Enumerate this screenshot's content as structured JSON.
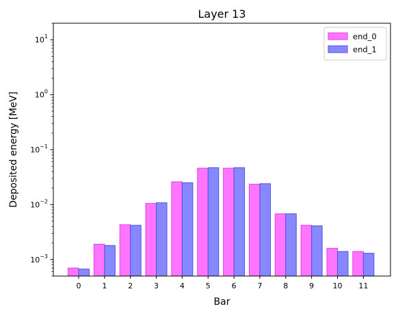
{
  "chart_data": {
    "type": "bar",
    "title": "Layer 13",
    "xlabel": "Bar",
    "ylabel": "Deposited energy [MeV]",
    "yscale": "log",
    "ylim": [
      0.0005,
      20
    ],
    "y_ticks": [
      {
        "value": 0.001,
        "base": "10",
        "exp": "−3"
      },
      {
        "value": 0.01,
        "base": "10",
        "exp": "−2"
      },
      {
        "value": 0.1,
        "base": "10",
        "exp": "−1"
      },
      {
        "value": 1,
        "base": "10",
        "exp": "0"
      },
      {
        "value": 10,
        "base": "10",
        "exp": "1"
      }
    ],
    "categories": [
      "0",
      "1",
      "2",
      "3",
      "4",
      "5",
      "6",
      "7",
      "8",
      "9",
      "10",
      "11"
    ],
    "legend_position": "top-right",
    "grid": false,
    "series": [
      {
        "name": "end_0",
        "fill": "#ff66ff",
        "stroke": "#e040e0",
        "values": [
          0.0007,
          0.0019,
          0.0043,
          0.0105,
          0.026,
          0.046,
          0.046,
          0.0235,
          0.0068,
          0.0042,
          0.0016,
          0.0014
        ]
      },
      {
        "name": "end_1",
        "fill": "#7a7aff",
        "stroke": "#5050e0",
        "values": [
          0.00067,
          0.0018,
          0.0042,
          0.0108,
          0.025,
          0.047,
          0.047,
          0.024,
          0.0068,
          0.0041,
          0.0014,
          0.0013
        ]
      }
    ]
  }
}
